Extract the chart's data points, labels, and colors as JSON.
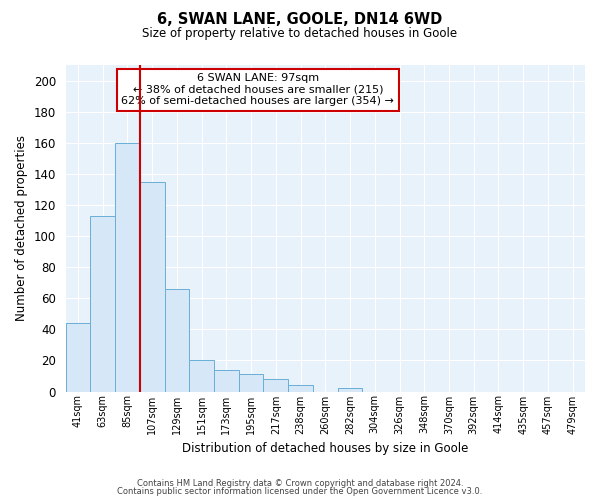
{
  "title1": "6, SWAN LANE, GOOLE, DN14 6WD",
  "title2": "Size of property relative to detached houses in Goole",
  "xlabel": "Distribution of detached houses by size in Goole",
  "ylabel": "Number of detached properties",
  "bar_values": [
    44,
    113,
    160,
    135,
    66,
    20,
    14,
    11,
    8,
    4,
    0,
    2,
    0,
    0,
    0,
    0,
    0,
    0,
    0,
    0,
    0
  ],
  "bar_labels": [
    "41sqm",
    "63sqm",
    "85sqm",
    "107sqm",
    "129sqm",
    "151sqm",
    "173sqm",
    "195sqm",
    "217sqm",
    "238sqm",
    "260sqm",
    "282sqm",
    "304sqm",
    "326sqm",
    "348sqm",
    "370sqm",
    "392sqm",
    "414sqm",
    "435sqm",
    "457sqm",
    "479sqm"
  ],
  "bar_color": "#d6e8f7",
  "bar_edge_color": "#6aaed6",
  "ylim": [
    0,
    210
  ],
  "yticks": [
    0,
    20,
    40,
    60,
    80,
    100,
    120,
    140,
    160,
    180,
    200
  ],
  "vline_x": 2.5,
  "vline_color": "#cc0000",
  "annotation_title": "6 SWAN LANE: 97sqm",
  "annotation_line2": "← 38% of detached houses are smaller (215)",
  "annotation_line3": "62% of semi-detached houses are larger (354) →",
  "annotation_box_color": "#cc0000",
  "footnote1": "Contains HM Land Registry data © Crown copyright and database right 2024.",
  "footnote2": "Contains public sector information licensed under the Open Government Licence v3.0.",
  "plot_bg_color": "#e8f2fb"
}
